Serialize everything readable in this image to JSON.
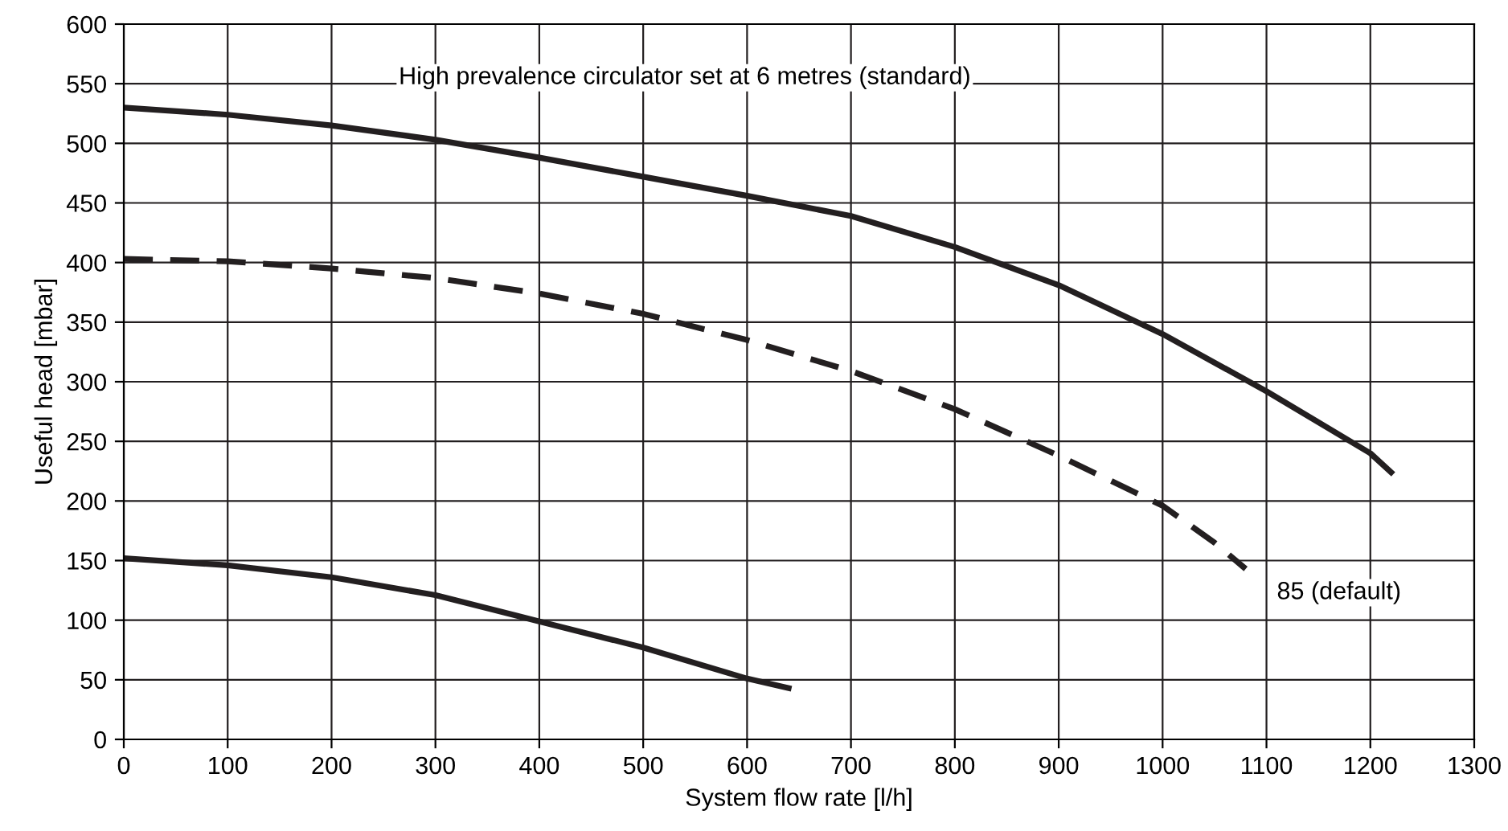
{
  "chart_data": {
    "type": "line",
    "xlabel": "System flow rate [l/h]",
    "ylabel": "Useful head [mbar]",
    "xlim": [
      0,
      1300
    ],
    "xticks": [
      0,
      100,
      200,
      300,
      400,
      500,
      600,
      700,
      800,
      900,
      1000,
      1100,
      1200,
      1300
    ],
    "ylim": [
      0,
      600
    ],
    "yticks": [
      0,
      50,
      100,
      150,
      200,
      250,
      300,
      350,
      400,
      450,
      500,
      550,
      600
    ],
    "grid": true,
    "legend": false,
    "series": [
      {
        "name": "High prevalence circulator set at 6 metres (standard)",
        "color": "#231f20",
        "line_style": "solid",
        "x": [
          0,
          100,
          200,
          300,
          400,
          500,
          600,
          700,
          800,
          900,
          1000,
          1100,
          1200,
          1220
        ],
        "values": [
          530,
          524,
          515,
          503,
          488,
          472,
          456,
          439,
          413,
          381,
          340,
          292,
          240,
          224
        ]
      },
      {
        "name": "85 (default)",
        "color": "#231f20",
        "line_style": "dashed",
        "x": [
          0,
          100,
          200,
          300,
          400,
          500,
          600,
          700,
          800,
          900,
          1000,
          1050,
          1080
        ],
        "values": [
          403,
          401,
          395,
          387,
          374,
          357,
          335,
          309,
          277,
          238,
          196,
          165,
          143
        ]
      },
      {
        "color": "#231f20",
        "line_style": "solid",
        "x": [
          0,
          100,
          200,
          300,
          400,
          500,
          600,
          640
        ],
        "values": [
          152,
          146,
          136,
          121,
          99,
          77,
          51,
          43
        ]
      }
    ]
  }
}
